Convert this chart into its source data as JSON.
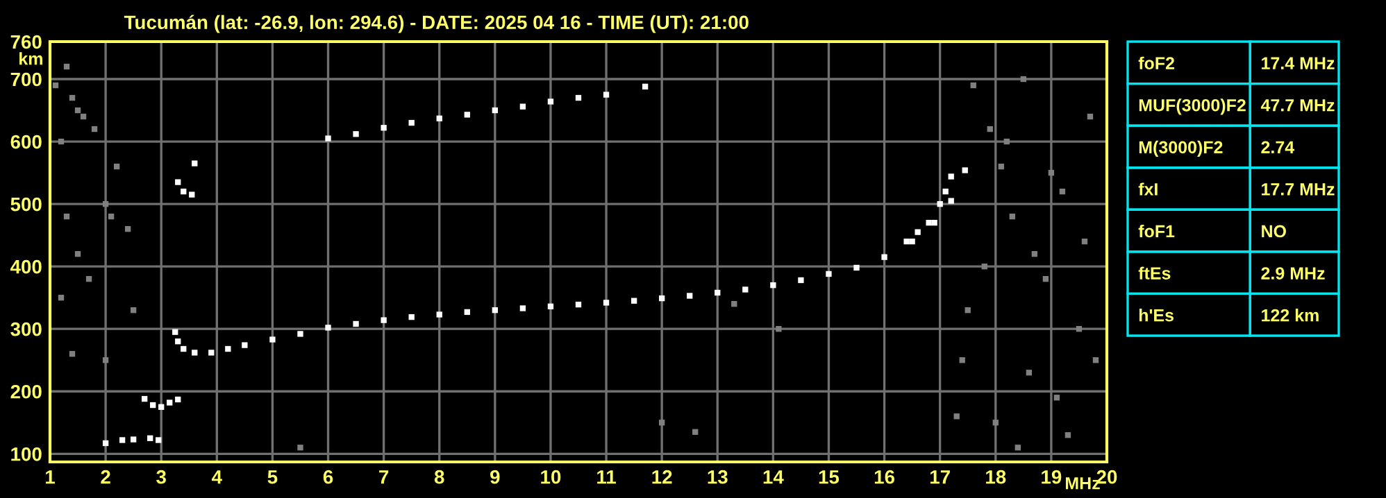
{
  "chart_data": [
    {
      "type": "scatter",
      "title": "Tucumán (lat: -26.9, lon: 294.6) - DATE: 2025 04 16 - TIME (UT): 21:00",
      "xlabel": "MHz",
      "ylabel": "km",
      "xlim": [
        1,
        20
      ],
      "ylim": [
        87,
        760
      ],
      "xticks": [
        1,
        2,
        3,
        4,
        5,
        6,
        7,
        8,
        9,
        10,
        11,
        12,
        13,
        14,
        15,
        16,
        17,
        18,
        19,
        20
      ],
      "yticks": [
        100,
        200,
        300,
        400,
        500,
        600,
        700,
        760
      ],
      "grid": true,
      "marker": "square",
      "legend": false,
      "series": [
        {
          "color": "#ffffff",
          "x": [
            3.25,
            3.3,
            3.4,
            3.6,
            3.9,
            4.2,
            4.5,
            5,
            5.5,
            6,
            6.5,
            7,
            7.5,
            8,
            8.5,
            9,
            9.5,
            10,
            10.5,
            11,
            11.5,
            12,
            12.5,
            13,
            13.5,
            14,
            14.5,
            15,
            15.5,
            16,
            16.5,
            16.9,
            17.2,
            17.45
          ],
          "values": [
            295,
            280,
            268,
            262,
            262,
            268,
            274,
            283,
            292,
            302,
            308,
            314,
            319,
            323,
            327,
            330,
            333,
            336,
            339,
            342,
            345,
            349,
            353,
            358,
            363,
            370,
            378,
            388,
            398,
            415,
            440,
            470,
            505,
            554
          ]
        },
        {
          "color": "#ffffff",
          "x": [
            16.4,
            16.6,
            16.8,
            17.0,
            17.1,
            17.2
          ],
          "values": [
            440,
            455,
            470,
            500,
            520,
            544
          ]
        },
        {
          "color": "#ffffff",
          "x": [
            6,
            6.5,
            7,
            7.5,
            8,
            8.5,
            9,
            9.5,
            10,
            10.5,
            11,
            11.7
          ],
          "values": [
            605,
            612,
            622,
            630,
            637,
            643,
            650,
            656,
            664,
            670,
            675,
            688
          ]
        },
        {
          "color": "#ffffff",
          "x": [
            2,
            2.3,
            2.5,
            2.8,
            2.95,
            2.7,
            2.85,
            3.0,
            3.15,
            3.3,
            3.3,
            3.4,
            3.55,
            3.6
          ],
          "values": [
            117,
            122,
            123,
            125,
            122,
            188,
            178,
            175,
            182,
            187,
            535,
            520,
            515,
            565
          ]
        },
        {
          "color": "#808080",
          "x": [
            1.1,
            1.3,
            1.4,
            1.5,
            1.2,
            1.6,
            1.8,
            2.0,
            2.1,
            1.3,
            1.5,
            2.2,
            2.4,
            1.2,
            1.7,
            2.5,
            1.4,
            2.0,
            5.5,
            12.0,
            12.6,
            17.3,
            17.6,
            17.9,
            18.1,
            18.3,
            18.5,
            18.7,
            18.9,
            19.2,
            19.5,
            19.8,
            17.5,
            18.0,
            18.6,
            19.1,
            19.6,
            17.8,
            18.4,
            19.3,
            18.2,
            19.0,
            17.4,
            19.7,
            13.3,
            14.1
          ],
          "values": [
            690,
            720,
            670,
            650,
            600,
            640,
            620,
            500,
            480,
            480,
            420,
            560,
            460,
            350,
            380,
            330,
            260,
            250,
            110,
            150,
            135,
            160,
            690,
            620,
            560,
            480,
            700,
            420,
            380,
            520,
            300,
            250,
            330,
            150,
            230,
            190,
            440,
            400,
            110,
            130,
            600,
            550,
            250,
            640,
            340,
            300
          ]
        }
      ]
    },
    {
      "type": "other",
      "annotations": [
        "foF2",
        "17.4 MHz",
        "MUF(3000)F2",
        "47.7 MHz",
        "M(3000)F2",
        "2.74",
        "fxI",
        "17.7 MHz",
        "foF1",
        "NO",
        "ftEs",
        "2.9 MHz",
        "h'Es",
        "122 km"
      ]
    }
  ]
}
